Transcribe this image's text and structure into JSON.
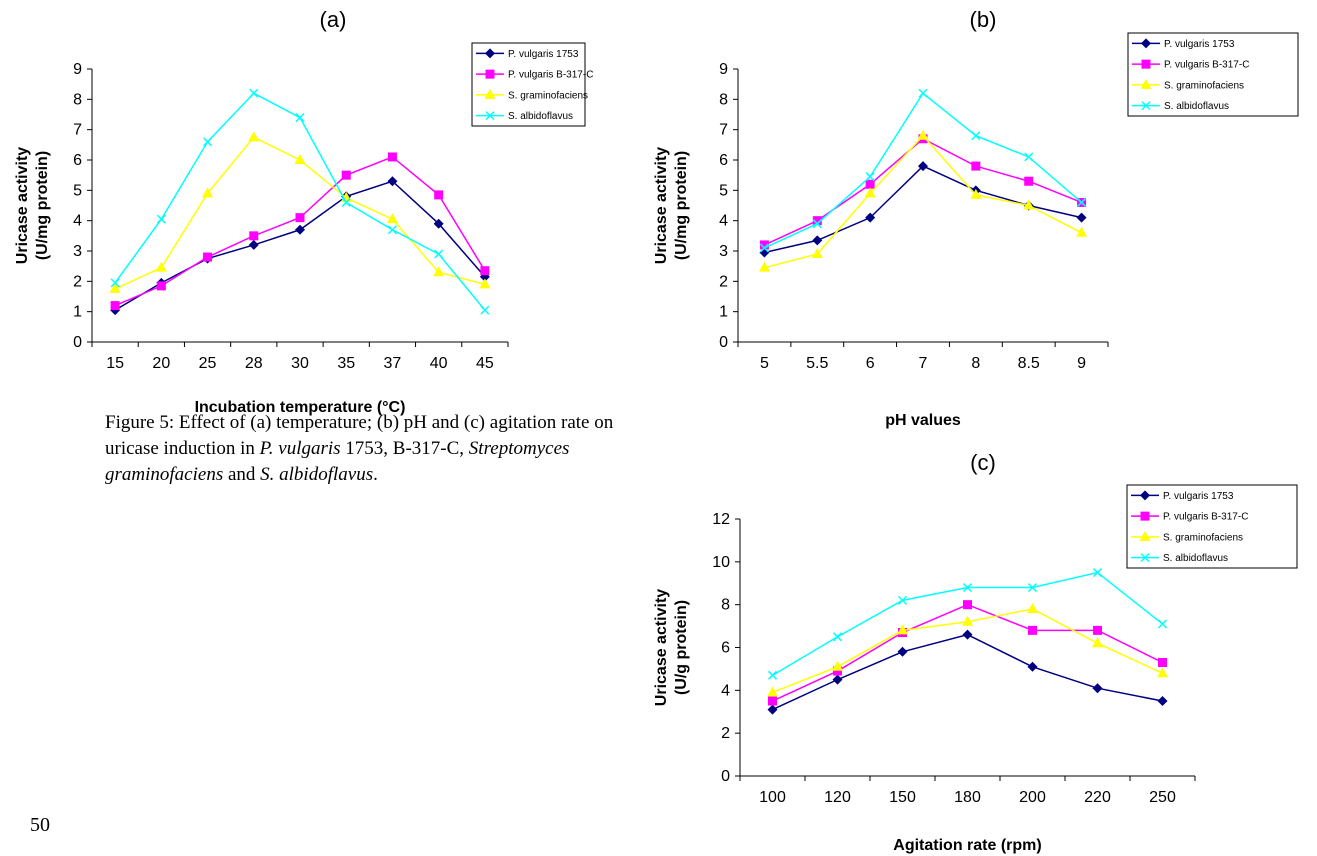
{
  "caption": {
    "t1": "Figure 5: Effect of (a) temperature; (b) pH and (c) agitation rate on uricase induction in ",
    "t2": "P. vulgaris",
    "t3": " 1753, B-317-C, ",
    "t4": "Streptomyces graminofaciens",
    "t5": " and ",
    "t6": "S. albidoflavus",
    "t7": "."
  },
  "page_number": "50",
  "colors": {
    "series": [
      "#000080",
      "#ff00ff",
      "#ffff00",
      "#00ffff"
    ]
  },
  "markers": [
    "diamond",
    "square",
    "triangle",
    "cross"
  ],
  "chart_data": [
    {
      "type": "line",
      "title": "(a)",
      "xlabel": "Incubation temperature (°C)",
      "ylabel": [
        "Uricase activity",
        "(U/mg protein)"
      ],
      "categories": [
        "15",
        "20",
        "25",
        "28",
        "30",
        "35",
        "37",
        "40",
        "45"
      ],
      "ylim": [
        0,
        9
      ],
      "yticks": [
        0,
        1,
        2,
        3,
        4,
        5,
        6,
        7,
        8,
        9
      ],
      "legend": "top-right",
      "grid": false,
      "series": [
        {
          "name": "P. vulgaris 1753",
          "values": [
            1.05,
            1.95,
            2.75,
            3.2,
            3.7,
            4.8,
            5.3,
            3.9,
            2.15
          ]
        },
        {
          "name": "P. vulgaris B-317-C",
          "values": [
            1.2,
            1.85,
            2.8,
            3.5,
            4.1,
            5.5,
            6.1,
            4.85,
            2.35
          ]
        },
        {
          "name": "S. graminofaciens",
          "values": [
            1.75,
            2.45,
            4.9,
            6.75,
            6.0,
            4.75,
            4.05,
            2.3,
            1.9
          ]
        },
        {
          "name": "S. albidoflavus",
          "values": [
            1.95,
            4.05,
            6.6,
            8.2,
            7.4,
            4.6,
            3.7,
            2.9,
            1.05
          ]
        }
      ]
    },
    {
      "type": "line",
      "title": "(b)",
      "xlabel": "pH values",
      "ylabel": [
        "Uricase activity",
        "(U/mg protein)"
      ],
      "categories": [
        "5",
        "5.5",
        "6",
        "7",
        "8",
        "8.5",
        "9"
      ],
      "ylim": [
        0,
        9
      ],
      "yticks": [
        0,
        1,
        2,
        3,
        4,
        5,
        6,
        7,
        8,
        9
      ],
      "legend": "top-right",
      "grid": false,
      "series": [
        {
          "name": "P. vulgaris 1753",
          "values": [
            2.95,
            3.35,
            4.1,
            5.8,
            5.0,
            4.5,
            4.1
          ]
        },
        {
          "name": "P. vulgaris B-317-C",
          "values": [
            3.2,
            4.0,
            5.2,
            6.7,
            5.8,
            5.3,
            4.6
          ]
        },
        {
          "name": "S. graminofaciens",
          "values": [
            2.45,
            2.9,
            4.9,
            6.8,
            4.85,
            4.5,
            3.6
          ]
        },
        {
          "name": "S. albidoflavus",
          "values": [
            3.1,
            3.9,
            5.45,
            8.2,
            6.8,
            6.1,
            4.6
          ]
        }
      ]
    },
    {
      "type": "line",
      "title": "(c)",
      "xlabel": "Agitation rate (rpm)",
      "ylabel": [
        "Uricase activity",
        "(U/g protein)"
      ],
      "categories": [
        "100",
        "120",
        "150",
        "180",
        "200",
        "220",
        "250"
      ],
      "ylim": [
        0,
        12
      ],
      "yticks": [
        0,
        2,
        4,
        6,
        8,
        10,
        12
      ],
      "legend": "top-right",
      "grid": false,
      "series": [
        {
          "name": "P. vulgaris 1753",
          "values": [
            3.1,
            4.5,
            5.8,
            6.6,
            5.1,
            4.1,
            3.5
          ]
        },
        {
          "name": "P. vulgaris B-317-C",
          "values": [
            3.5,
            4.9,
            6.7,
            8.0,
            6.8,
            6.8,
            5.3
          ]
        },
        {
          "name": "S. graminofaciens",
          "values": [
            3.9,
            5.1,
            6.8,
            7.2,
            7.8,
            6.2,
            4.8
          ]
        },
        {
          "name": "S. albidoflavus",
          "values": [
            4.7,
            6.5,
            8.2,
            8.8,
            8.8,
            9.5,
            7.1
          ]
        }
      ]
    }
  ]
}
